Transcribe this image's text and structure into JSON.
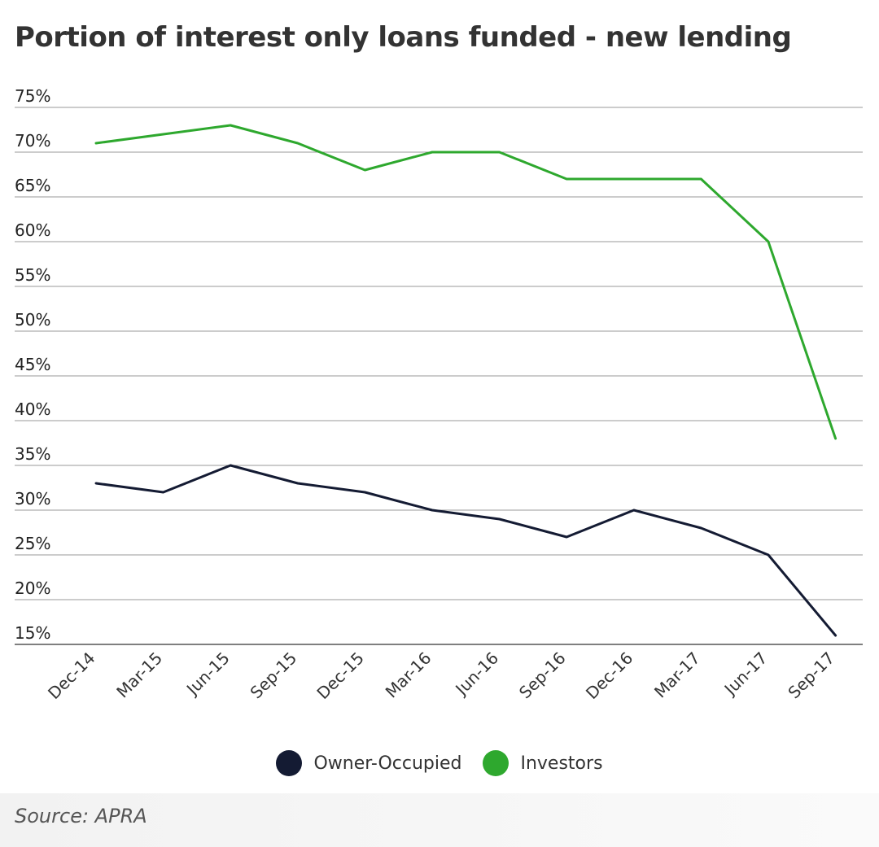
{
  "title": "Portion of interest only loans funded - new lending",
  "source": "Source: APRA",
  "chart_data": {
    "type": "line",
    "title": "Portion of interest only loans funded - new lending",
    "xlabel": "",
    "ylabel": "",
    "categories": [
      "Dec-14",
      "Mar-15",
      "Jun-15",
      "Sep-15",
      "Dec-15",
      "Mar-16",
      "Jun-16",
      "Sep-16",
      "Dec-16",
      "Mar-17",
      "Jun-17",
      "Sep-17"
    ],
    "y_ticks": [
      "15%",
      "20%",
      "25%",
      "30%",
      "35%",
      "40%",
      "45%",
      "50%",
      "55%",
      "60%",
      "65%",
      "70%",
      "75%"
    ],
    "ylim": [
      15,
      75
    ],
    "grid": "horizontal",
    "legend_position": "bottom",
    "series": [
      {
        "name": "Owner-Occupied",
        "color": "#141b33",
        "values": [
          33,
          32,
          35,
          33,
          32,
          30,
          29,
          27,
          30,
          28,
          25,
          16
        ]
      },
      {
        "name": "Investors",
        "color": "#2ea82e",
        "values": [
          71,
          72,
          73,
          71,
          68,
          70,
          70,
          67,
          67,
          67,
          60,
          38
        ]
      }
    ]
  }
}
